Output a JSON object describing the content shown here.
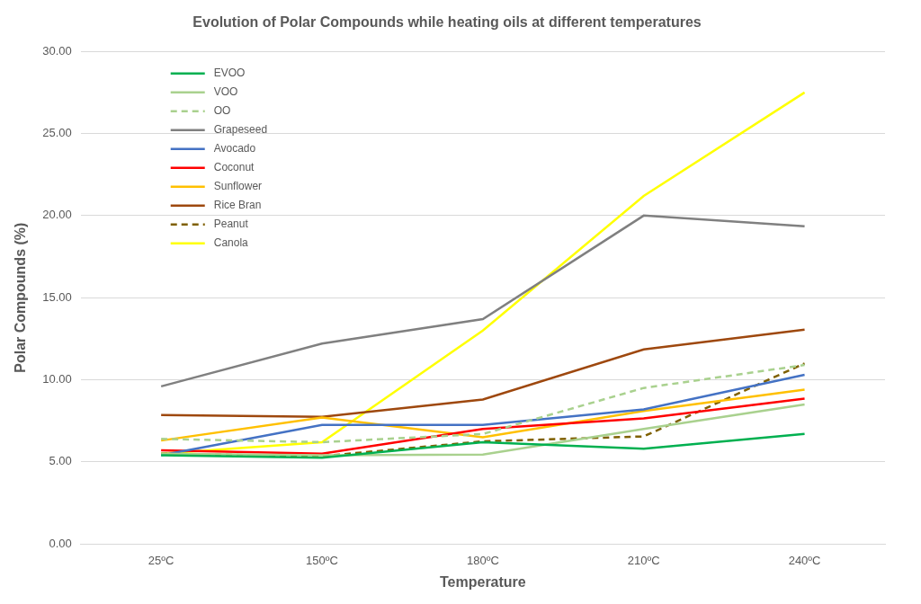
{
  "chart_data": {
    "type": "line",
    "title": "Evolution of Polar Compounds while heating oils at different temperatures",
    "x_label": "Temperature",
    "y_label": "Polar Compounds (%)",
    "categories": [
      "25ºC",
      "150ºC",
      "180ºC",
      "210ºC",
      "240ºC"
    ],
    "series": [
      {
        "name": "EVOO",
        "color": "#00b050",
        "line_style": "solid",
        "values": [
          5.4,
          5.25,
          6.2,
          5.8,
          6.7
        ]
      },
      {
        "name": "VOO",
        "color": "#a9d18e",
        "line_style": "solid",
        "values": [
          5.5,
          5.4,
          5.45,
          7.0,
          8.5
        ]
      },
      {
        "name": "OO",
        "color": "#a9d18e",
        "line_style": "dashed",
        "values": [
          6.4,
          6.2,
          6.7,
          9.5,
          10.9
        ]
      },
      {
        "name": "Grapeseed",
        "color": "#808080",
        "line_style": "solid",
        "values": [
          9.6,
          12.2,
          13.7,
          20.0,
          19.35
        ]
      },
      {
        "name": "Avocado",
        "color": "#4472c4",
        "line_style": "solid",
        "values": [
          5.4,
          7.25,
          7.25,
          8.2,
          10.3
        ]
      },
      {
        "name": "Coconut",
        "color": "#ff0000",
        "line_style": "solid",
        "values": [
          5.7,
          5.5,
          7.0,
          7.65,
          8.85
        ]
      },
      {
        "name": "Sunflower",
        "color": "#ffc000",
        "line_style": "solid",
        "values": [
          6.3,
          7.7,
          6.5,
          8.1,
          9.4
        ]
      },
      {
        "name": "Rice Bran",
        "color": "#9e480e",
        "line_style": "solid",
        "values": [
          7.85,
          7.75,
          8.8,
          11.85,
          13.05
        ]
      },
      {
        "name": "Peanut",
        "color": "#7f6000",
        "line_style": "dashed",
        "values": [
          5.5,
          5.35,
          6.25,
          6.55,
          11.0
        ]
      },
      {
        "name": "Canola",
        "color": "#ffff00",
        "line_style": "solid",
        "values": [
          5.5,
          6.2,
          13.0,
          21.2,
          27.5
        ]
      }
    ],
    "ylim": [
      0,
      30
    ],
    "yticks": [
      {
        "value": 0,
        "label": "0.00"
      },
      {
        "value": 5,
        "label": "5.00"
      },
      {
        "value": 10,
        "label": "10.00"
      },
      {
        "value": 15,
        "label": "15.00"
      },
      {
        "value": 20,
        "label": "20.00"
      },
      {
        "value": 25,
        "label": "25.00"
      },
      {
        "value": 30,
        "label": "30.00"
      }
    ],
    "grid": true,
    "legend": "upper left"
  }
}
